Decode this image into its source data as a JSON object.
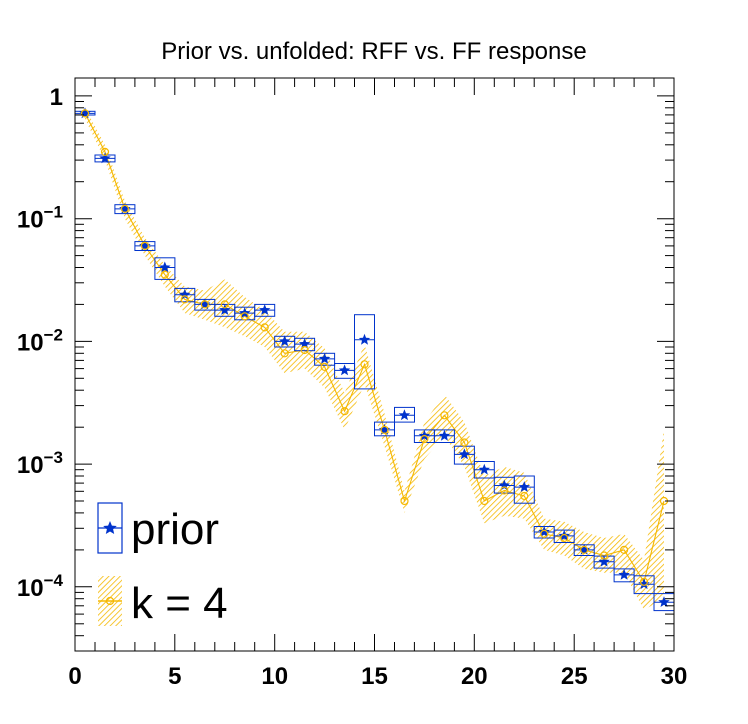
{
  "chart_data": {
    "type": "scatter",
    "title": "Prior vs. unfolded: RFF vs. FF response",
    "xlabel": "",
    "ylabel": "",
    "xlim": [
      0,
      30
    ],
    "ylim": [
      3e-05,
      1.4
    ],
    "yscale": "log",
    "x_ticks": [
      "0",
      "5",
      "10",
      "15",
      "20",
      "25",
      "30"
    ],
    "y_ticks": [
      {
        "base": "1",
        "exp": ""
      },
      {
        "base": "10",
        "exp": "−1"
      },
      {
        "base": "10",
        "exp": "−2"
      },
      {
        "base": "10",
        "exp": "−3"
      },
      {
        "base": "10",
        "exp": "−4"
      }
    ],
    "legend_position": "bottom-left",
    "colors": {
      "prior": "#0033cc",
      "k4": "#f5b800"
    },
    "series": [
      {
        "name": "prior",
        "bins": [
          0,
          1,
          2,
          3,
          4,
          5,
          6,
          7,
          8,
          9,
          10,
          11,
          12,
          13,
          14,
          15,
          16,
          17,
          18,
          19,
          20,
          21,
          22,
          23,
          24,
          25,
          26,
          27,
          28,
          29,
          30
        ],
        "values": [
          0.72,
          0.31,
          0.12,
          0.06,
          0.04,
          0.024,
          0.02,
          0.018,
          0.017,
          0.018,
          0.01,
          0.0095,
          0.0072,
          0.0058,
          0.0103,
          0.0019,
          0.0025,
          0.0017,
          0.0017,
          0.0012,
          0.0009,
          0.00067,
          0.00065,
          0.00028,
          0.00026,
          0.0002,
          0.00016,
          0.000125,
          0.000105,
          7.5e-05
        ],
        "box_low": [
          0.7,
          0.29,
          0.11,
          0.055,
          0.032,
          0.021,
          0.018,
          0.016,
          0.015,
          0.016,
          0.009,
          0.0084,
          0.0064,
          0.005,
          0.0041,
          0.0017,
          0.0022,
          0.0015,
          0.0015,
          0.001,
          0.00077,
          0.00058,
          0.00048,
          0.00025,
          0.00023,
          0.00018,
          0.000142,
          0.00011,
          8.8e-05,
          6.4e-05
        ],
        "box_high": [
          0.75,
          0.33,
          0.13,
          0.065,
          0.048,
          0.027,
          0.022,
          0.02,
          0.019,
          0.02,
          0.011,
          0.0106,
          0.008,
          0.0066,
          0.0165,
          0.0022,
          0.0029,
          0.0019,
          0.0019,
          0.0014,
          0.00105,
          0.00078,
          0.0008,
          0.00031,
          0.00029,
          0.00022,
          0.000178,
          0.00014,
          0.000123,
          8.8e-05
        ]
      },
      {
        "name": "k = 4",
        "x": [
          0.5,
          1.5,
          2.5,
          3.5,
          4.5,
          5.5,
          6.5,
          7.5,
          8.5,
          9.5,
          10.5,
          11.5,
          12.5,
          13.5,
          14.5,
          15.5,
          16.5,
          17.5,
          18.5,
          19.5,
          20.5,
          21.5,
          22.5,
          23.5,
          24.5,
          25.5,
          26.5,
          27.5,
          28.5,
          29.5
        ],
        "values": [
          0.72,
          0.35,
          0.12,
          0.06,
          0.035,
          0.022,
          0.02,
          0.02,
          0.016,
          0.013,
          0.008,
          0.0085,
          0.0062,
          0.0027,
          0.0065,
          0.0019,
          0.0005,
          0.0016,
          0.0025,
          0.0015,
          0.0005,
          0.00061,
          0.00055,
          0.00027,
          0.00025,
          0.0002,
          0.00018,
          0.0002,
          0.00011,
          0.0005
        ],
        "band_low": [
          0.65,
          0.3,
          0.1,
          0.05,
          0.028,
          0.017,
          0.015,
          0.013,
          0.011,
          0.009,
          0.0055,
          0.006,
          0.0042,
          0.0019,
          0.0045,
          0.0014,
          0.0004,
          0.0011,
          0.0017,
          0.00095,
          0.00033,
          0.00038,
          0.00036,
          0.0002,
          0.00018,
          0.00014,
          0.00013,
          0.00013,
          6.5e-05,
          8e-05
        ],
        "band_high": [
          0.8,
          0.4,
          0.14,
          0.07,
          0.042,
          0.028,
          0.026,
          0.032,
          0.023,
          0.018,
          0.012,
          0.012,
          0.0088,
          0.0038,
          0.0095,
          0.0026,
          0.0006,
          0.0022,
          0.0037,
          0.0022,
          0.0008,
          0.00095,
          0.00085,
          0.00036,
          0.00034,
          0.00028,
          0.00025,
          0.00027,
          0.000165,
          0.0019
        ]
      }
    ],
    "legend": [
      {
        "label": "prior"
      },
      {
        "label": "k = 4"
      }
    ]
  }
}
